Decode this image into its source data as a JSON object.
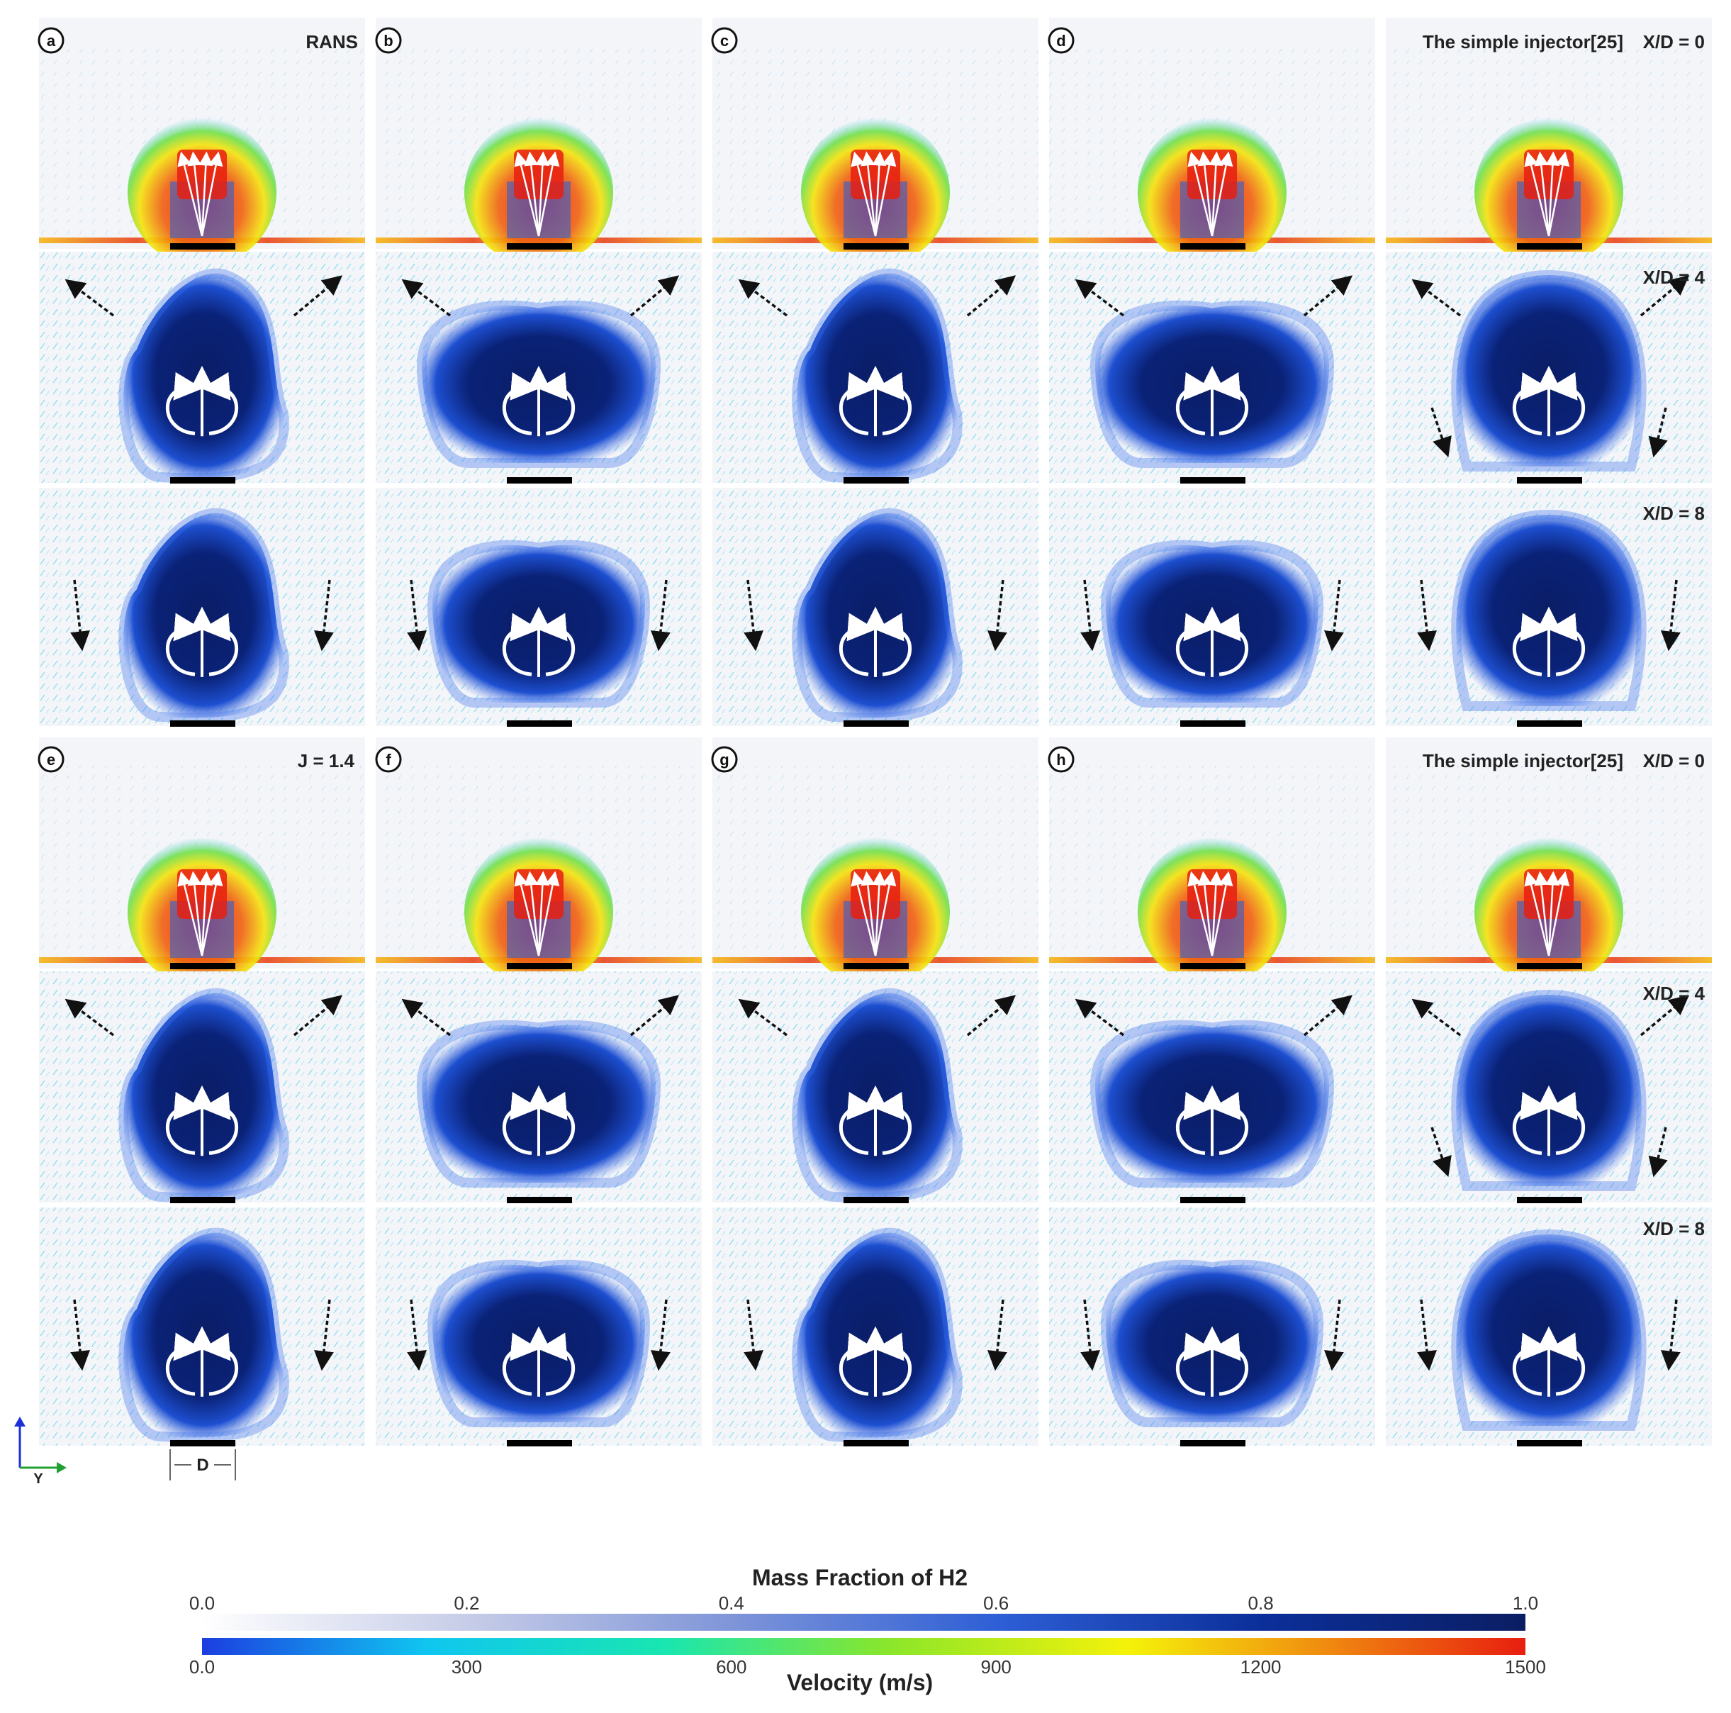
{
  "panels": {
    "top": {
      "letters": [
        "a",
        "b",
        "c",
        "d"
      ]
    },
    "bottom": {
      "letters": [
        "e",
        "f",
        "g",
        "h"
      ]
    }
  },
  "annotations": {
    "rans": "RANS",
    "j_value": "J = 1.4",
    "simple_injector_top": "The simple injector[25]",
    "simple_injector_bottom": "The simple injector[25]",
    "xd0_top": "X/D = 0",
    "xd4_top": "X/D = 4",
    "xd8_top": "X/D = 8",
    "xd0_bottom": "X/D = 0",
    "xd4_bottom": "X/D = 4",
    "xd8_bottom": "X/D = 8"
  },
  "axes_indicator": {
    "y_label": "Y",
    "d_label": "D"
  },
  "legend": {
    "mass_fraction": {
      "title": "Mass Fraction of H2",
      "ticks": [
        "0.0",
        "0.2",
        "0.4",
        "0.6",
        "0.8",
        "1.0"
      ],
      "colors": [
        "#ffffff",
        "#c7cde8",
        "#7f95d8",
        "#2e5fd6",
        "#0b2f9a",
        "#0b1e63"
      ]
    },
    "velocity": {
      "title": "Velocity (m/s)",
      "ticks": [
        "0.0",
        "300",
        "600",
        "900",
        "1200",
        "1500"
      ],
      "colors": [
        "#1c3ee0",
        "#10c6f0",
        "#19e6b0",
        "#8be62a",
        "#f5f20a",
        "#f08a10",
        "#e81e10"
      ]
    }
  }
}
